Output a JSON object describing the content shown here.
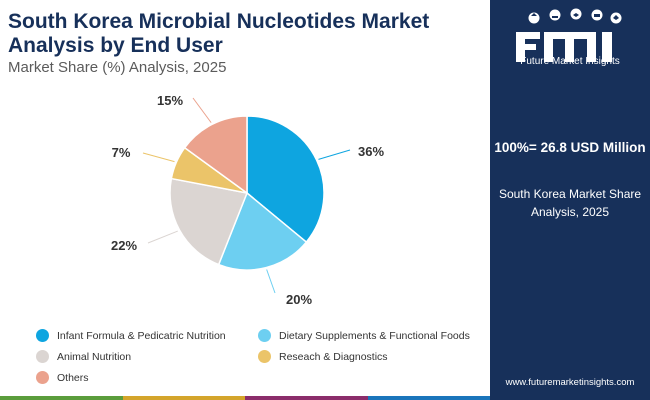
{
  "header": {
    "title": "South Korea Microbial Nucleotides Market Analysis by End User",
    "subtitle": "Market Share (%) Analysis, 2025"
  },
  "sidebar": {
    "logo_text": "Future Market Insights",
    "total_label": "100%= 26.8 USD Million",
    "market_label": "South Korea Market Share Analysis, 2025",
    "url": "www.futuremarketinsights.com"
  },
  "colors": {
    "sidebar": "#17305a",
    "bottom_bar": [
      "#5b9d3c",
      "#d4a52b",
      "#8b2d6b",
      "#1a75bb"
    ]
  },
  "chart_data": {
    "type": "pie",
    "unit": "%",
    "slices": [
      {
        "name": "Infant Formula & Pedicatric Nutrition",
        "value": 36,
        "label": "36%",
        "color": "#0ea5e0"
      },
      {
        "name": "Dietary Supplements & Functional Foods",
        "value": 20,
        "label": "20%",
        "color": "#6dcff1"
      },
      {
        "name": "Animal Nutrition",
        "value": 22,
        "label": "22%",
        "color": "#dbd5d2"
      },
      {
        "name": "Reseach & Diagnostics",
        "value": 7,
        "label": "7%",
        "color": "#ebc469"
      },
      {
        "name": "Others",
        "value": 15,
        "label": "15%",
        "color": "#eba28d"
      }
    ]
  }
}
